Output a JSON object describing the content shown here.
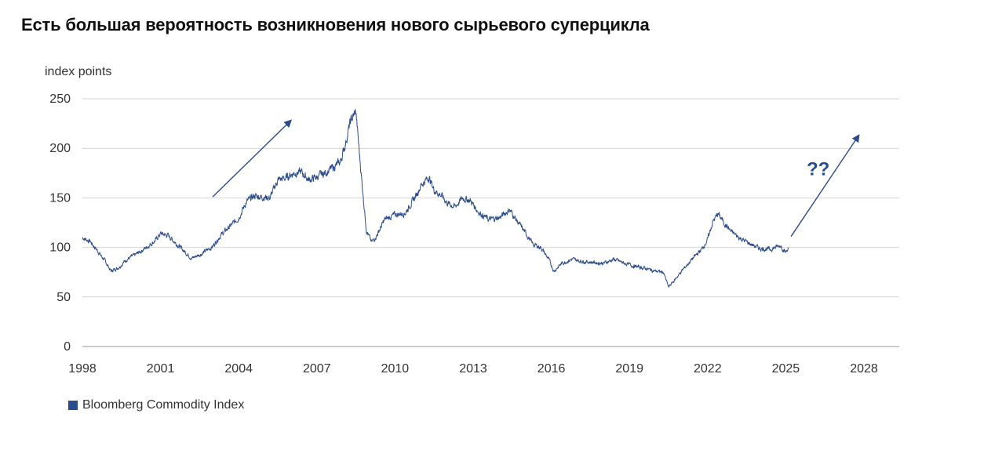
{
  "header": {
    "title": "Есть большая вероятность возникновения нового сырьевого суперцикла"
  },
  "chart_data": {
    "type": "line",
    "title": "Есть большая вероятность возникновения нового сырьевого суперцикла",
    "ylabel": "index points",
    "xlabel": "",
    "xlim": [
      1998,
      2029
    ],
    "ylim": [
      0,
      250
    ],
    "x_ticks": [
      "1998",
      "2001",
      "2004",
      "2007",
      "2010",
      "2013",
      "2016",
      "2019",
      "2022",
      "2025",
      "2028"
    ],
    "y_ticks": [
      "0",
      "50",
      "100",
      "150",
      "200",
      "250"
    ],
    "grid": "horizontal",
    "legend_position": "bottom-left",
    "series": [
      {
        "name": "Bloomberg Commodity Index",
        "color": "#2b4c8c",
        "x": [
          1998.0,
          1998.3,
          1998.6,
          1998.9,
          1999.1,
          1999.4,
          1999.7,
          2000.0,
          2000.4,
          2000.8,
          2001.0,
          2001.3,
          2001.6,
          2001.8,
          2002.2,
          2002.6,
          2003.0,
          2003.3,
          2003.7,
          2004.0,
          2004.3,
          2004.6,
          2004.9,
          2005.2,
          2005.5,
          2005.8,
          2006.1,
          2006.4,
          2006.7,
          2007.0,
          2007.3,
          2007.6,
          2007.9,
          2008.1,
          2008.3,
          2008.5,
          2008.6,
          2008.75,
          2008.9,
          2009.1,
          2009.3,
          2009.6,
          2010.0,
          2010.4,
          2010.8,
          2011.0,
          2011.3,
          2011.5,
          2011.8,
          2012.0,
          2012.3,
          2012.6,
          2012.9,
          2013.2,
          2013.6,
          2014.0,
          2014.4,
          2014.7,
          2015.0,
          2015.3,
          2015.6,
          2015.9,
          2016.1,
          2016.4,
          2016.8,
          2017.2,
          2017.6,
          2018.0,
          2018.4,
          2018.8,
          2019.2,
          2019.6,
          2020.0,
          2020.3,
          2020.5,
          2020.7,
          2021.0,
          2021.4,
          2021.8,
          2022.0,
          2022.2,
          2022.4,
          2022.6,
          2022.9,
          2023.2,
          2023.6,
          2024.0,
          2024.4,
          2024.8,
          2025.0,
          2025.1
        ],
        "values": [
          110,
          106,
          96,
          85,
          76,
          80,
          88,
          92,
          99,
          107,
          114,
          112,
          104,
          99,
          89,
          94,
          101,
          112,
          122,
          130,
          146,
          152,
          151,
          150,
          168,
          170,
          175,
          176,
          168,
          171,
          175,
          180,
          186,
          205,
          228,
          237,
          205,
          160,
          118,
          105,
          112,
          128,
          133,
          135,
          152,
          163,
          171,
          158,
          152,
          145,
          141,
          150,
          147,
          136,
          128,
          130,
          138,
          126,
          115,
          103,
          100,
          88,
          76,
          84,
          88,
          86,
          85,
          84,
          88,
          84,
          81,
          79,
          76,
          75,
          60,
          66,
          76,
          88,
          99,
          108,
          126,
          134,
          126,
          116,
          110,
          104,
          99,
          98,
          102,
          95,
          100
        ]
      }
    ],
    "annotations": [
      {
        "type": "arrow",
        "from": [
          2003.0,
          151
        ],
        "to": [
          2006.0,
          228
        ],
        "color": "#2b4c8c"
      },
      {
        "type": "arrow",
        "from": [
          2025.2,
          111
        ],
        "to": [
          2027.8,
          213
        ],
        "color": "#2b4c8c"
      },
      {
        "type": "text",
        "text": "??",
        "x": 2025.8,
        "y": 173,
        "color": "#2b4c8c"
      }
    ]
  },
  "legend": {
    "label": "Bloomberg Commodity Index",
    "color": "#2b4c8c"
  }
}
